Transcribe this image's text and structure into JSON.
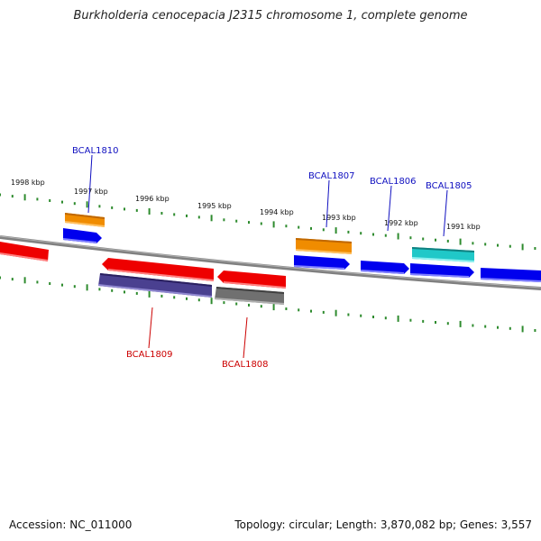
{
  "title": "Burkholderia cenocepacia J2315 chromosome 1, complete genome",
  "accession": "Accession: NC_011000",
  "summary": "Topology: circular; Length: 3,870,082 bp; Genes: 3,557",
  "kbp_labels": [
    "1998 kbp",
    "1997 kbp",
    "1996 kbp",
    "1995 kbp",
    "1994 kbp",
    "1993 kbp",
    "1992 kbp",
    "1991 kbp"
  ],
  "gene_labels": {
    "bcal1810": "BCAL1810",
    "bcal1809": "BCAL1809",
    "bcal1808": "BCAL1808",
    "bcal1807": "BCAL1807",
    "bcal1806": "BCAL1806",
    "bcal1805": "BCAL1805"
  },
  "colors": {
    "backbone": "#808080",
    "tick": "#2e8b2e",
    "forward_label": "#1010c0",
    "reverse_label": "#cc0000",
    "blue": "#0000ee",
    "red": "#ee0000",
    "orange": "#f08c00",
    "cyan": "#20c8c8",
    "purple": "#4a4090",
    "gray": "#707070"
  }
}
